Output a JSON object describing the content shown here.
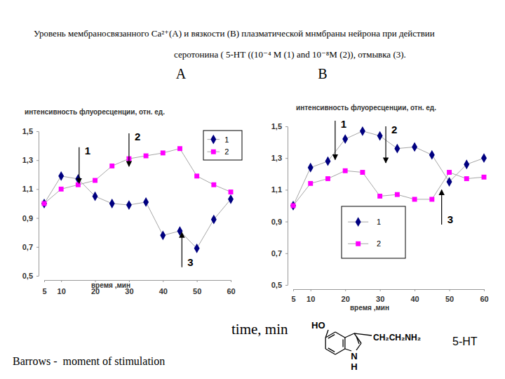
{
  "page": {
    "title_lines": [
      "Уровень мембраносвязанного Са²⁺(А) и вязкости (В) плазматической мнмбраны нейрона при действии",
      "серотонина ( 5-НТ ((10⁻⁴ M (1) and 10⁻⁸M (2)), отмывка (3)."
    ],
    "panel_labels": [
      "A",
      "B"
    ],
    "caption": "time, min",
    "formula": {
      "hydroxyl": "HO",
      "chain": "CH₂CH₂NH₂",
      "nitrogen": "N",
      "hydrogen": "H"
    },
    "compound": "5-HT",
    "footnote": "Barrows -  moment of stimulation"
  },
  "chart_data": [
    {
      "type": "line",
      "x_label": "время ,мин",
      "y_label": "интенсивность флуоресценции, отн. ед.",
      "x": [
        5,
        10,
        15,
        20,
        25,
        30,
        35,
        40,
        45,
        50,
        55,
        60
      ],
      "xlim": [
        5,
        60
      ],
      "xticks": [
        5,
        10,
        20,
        30,
        40,
        50,
        60
      ],
      "ylim": [
        0.5,
        1.5
      ],
      "yticks": [
        {
          "value": 0.5,
          "label": "0,5"
        },
        {
          "value": 0.7,
          "label": "0,7"
        },
        {
          "value": 0.9,
          "label": "0,9"
        },
        {
          "value": 1.1,
          "label": "1,1"
        },
        {
          "value": 1.3,
          "label": "1,3"
        },
        {
          "value": 1.5,
          "label": "1,5"
        }
      ],
      "legend": "top-right",
      "series": [
        {
          "name": "1",
          "color": "#000080",
          "marker": "diamond",
          "values": [
            1.0,
            1.19,
            1.17,
            1.05,
            1.0,
            0.99,
            1.01,
            0.78,
            0.81,
            0.69,
            0.89,
            1.03
          ]
        },
        {
          "name": "2",
          "color": "#ff00ff",
          "marker": "square",
          "values": [
            1.0,
            1.1,
            1.13,
            1.16,
            1.26,
            1.31,
            1.33,
            1.35,
            1.38,
            1.19,
            1.13,
            1.08
          ]
        }
      ],
      "annotations": [
        {
          "text": "1",
          "x": 15.3,
          "y_from": 1.39,
          "y_to": 1.14
        },
        {
          "text": "2",
          "x": 30,
          "y_from": 1.485,
          "y_to": 1.257
        },
        {
          "text": "3",
          "x": 45.6,
          "y_from": 0.56,
          "y_to": 0.8
        }
      ]
    },
    {
      "type": "line",
      "x_label": "время ,мин",
      "y_label": "интенсивность флуоресценции, отн. ед.",
      "x": [
        5,
        10,
        15,
        20,
        25,
        30,
        35,
        40,
        45,
        50,
        55,
        60
      ],
      "xlim": [
        5,
        60
      ],
      "xticks": [
        5,
        10,
        20,
        30,
        40,
        50,
        60
      ],
      "ylim": [
        0.5,
        1.5
      ],
      "yticks": [
        {
          "value": 0.5,
          "label": "0,5"
        },
        {
          "value": 0.7,
          "label": "0,7"
        },
        {
          "value": 0.9,
          "label": "0,9"
        },
        {
          "value": 1.1,
          "label": "1,1"
        },
        {
          "value": 1.3,
          "label": "1,3"
        },
        {
          "value": 1.5,
          "label": "1,5"
        }
      ],
      "legend": "bottom-left",
      "series": [
        {
          "name": "1",
          "color": "#000080",
          "marker": "diamond",
          "values": [
            1.0,
            1.24,
            1.28,
            1.42,
            1.47,
            1.44,
            1.36,
            1.37,
            1.32,
            1.15,
            1.26,
            1.3
          ]
        },
        {
          "name": "2",
          "color": "#ff00ff",
          "marker": "square",
          "values": [
            1.0,
            1.14,
            1.17,
            1.22,
            1.21,
            1.06,
            1.07,
            1.04,
            1.04,
            1.21,
            1.17,
            1.18
          ]
        }
      ],
      "annotations": [
        {
          "text": "1",
          "x": 17.1,
          "y_from": 1.535,
          "y_to": 1.29
        },
        {
          "text": "2",
          "x": 31.7,
          "y_from": 1.5,
          "y_to": 1.27
        },
        {
          "text": "3",
          "x": 47.8,
          "y_from": 0.88,
          "y_to": 1.1
        }
      ]
    }
  ]
}
